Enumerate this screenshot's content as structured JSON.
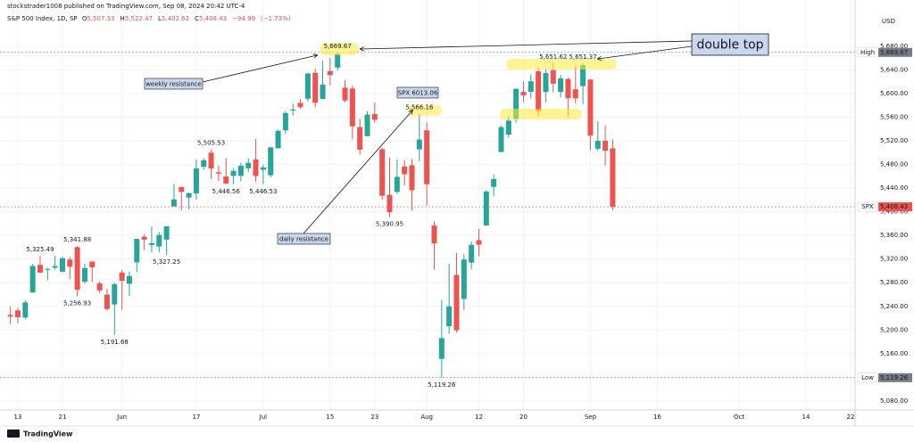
{
  "header": {
    "publisher": "stockstrader1008 published on TradingView.com, Sep 08, 2024 20:42 UTC-4",
    "logo": "TradingView"
  },
  "chart_data": {
    "type": "candlestick",
    "title": "S&P 500 Index, 1D, SP",
    "header_values": [
      {
        "prefix": "O",
        "value": 5507.33,
        "label": "5,507.33"
      },
      {
        "prefix": "H",
        "value": 5522.47,
        "label": "5,522.47"
      },
      {
        "prefix": "L",
        "value": 5402.62,
        "label": "5,402.62"
      },
      {
        "prefix": "C",
        "value": 5408.43,
        "label": "5,408.43"
      },
      {
        "value": -94.99,
        "label": "−94.99"
      },
      {
        "value": -1.73,
        "label": "(−1.73%)"
      }
    ],
    "y_axis_label": "USD",
    "up_color": "#26a69a",
    "down_color": "#ef5350",
    "grid": true,
    "open": [
      5225.49,
      5233.08,
      5221.1,
      5263.26,
      5310.07,
      5303.1,
      5305.35,
      5298.69,
      5319.28,
      5340.26,
      5281.45,
      5315.91,
      5278.73,
      5259.77,
      5243.21,
      5297.15,
      5278.24,
      5314.48,
      5357.8,
      5343.81,
      5341.22,
      5353.0,
      5409.13,
      5441.93,
      5424.08,
      5431.11,
      5476.15,
      5499.99,
      5466.77,
      5459.58,
      5460.73,
      5460.71,
      5473.59,
      5488.48,
      5471.08,
      5461.84,
      5507.44,
      5537.91,
      5572.75,
      5584.24,
      5591.26,
      5635.21,
      5590.76,
      5638.16,
      5644.09,
      5610.07,
      5608.56,
      5543.37,
      5528.04,
      5565.3,
      5505.84,
      5428.7,
      5433.67,
      5476.55,
      5478.73,
      5505.59,
      5537.84,
      5376.63,
      5151.14,
      5206.42,
      5293.13,
      5252.57,
      5314.05,
      5351.88,
      5376.98,
      5442.24,
      5501.13,
      5530.5,
      5557.23,
      5602.88,
      5603.09,
      5637.77,
      5602.89,
      5639.66,
      5602.89,
      5624.51,
      5607.3,
      5612.74,
      5623.89,
      5506.68,
      5520.08,
      5507.33
    ],
    "high": [
      5239.66,
      5237.26,
      5250.37,
      5311.76,
      5325.49,
      5305.45,
      5325.32,
      5324.32,
      5323.18,
      5341.88,
      5311.65,
      5315.91,
      5282.27,
      5270.26,
      5280.33,
      5302.11,
      5298.8,
      5354.16,
      5362.35,
      5375.08,
      5365.79,
      5375.95,
      5447.25,
      5441.93,
      5432.39,
      5488.5,
      5490.38,
      5505.53,
      5478.31,
      5490.81,
      5472.88,
      5483.14,
      5490.66,
      5523.64,
      5479.55,
      5509.69,
      5539.27,
      5570.33,
      5583.11,
      5590.75,
      5635.39,
      5642.45,
      5655.56,
      5660.54,
      5669.67,
      5622.49,
      5614.05,
      5557.5,
      5570.36,
      5585.34,
      5508.04,
      5491.59,
      5488.66,
      5487.74,
      5489.46,
      5566.16,
      5551.51,
      5383.89,
      5250.89,
      5312.34,
      5330.64,
      5328.03,
      5350.05,
      5371.2,
      5436.5,
      5463.22,
      5546.23,
      5561.98,
      5608.3,
      5620.51,
      5632.68,
      5643.22,
      5641.82,
      5651.62,
      5631.18,
      5627.03,
      5646.95,
      5651.37,
      5623.89,
      5552.99,
      5546.3,
      5522.47
    ],
    "low": [
      5209.68,
      5211.16,
      5217.98,
      5263.26,
      5296.19,
      5283.59,
      5302.4,
      5297.87,
      5286.01,
      5256.93,
      5278.39,
      5280.89,
      5262.7,
      5233.0,
      5191.68,
      5234.32,
      5257.63,
      5297.64,
      5335.36,
      5331.33,
      5331.52,
      5327.25,
      5409.13,
      5402.51,
      5403.75,
      5420.4,
      5471.32,
      5455.56,
      5452.03,
      5446.56,
      5446.72,
      5451.87,
      5467.54,
      5451.12,
      5446.53,
      5458.43,
      5507.42,
      5531.63,
      5562.51,
      5574.57,
      5586.44,
      5576.53,
      5590.44,
      5614.05,
      5639.02,
      5584.81,
      5522.81,
      5497.04,
      5528.04,
      5550.9,
      5419.98,
      5390.95,
      5430.7,
      5444.44,
      5401.71,
      5485.7,
      5410.42,
      5302.03,
      5119.26,
      5193.56,
      5195.54,
      5233.85,
      5302.4,
      5324.37,
      5376.98,
      5425.82,
      5501.13,
      5525.21,
      5550.74,
      5585.5,
      5591.57,
      5560.95,
      5585.16,
      5602.34,
      5593.48,
      5560.2,
      5583.71,
      5581.79,
      5504.33,
      5503.66,
      5478.0,
      5402.62
    ],
    "close": [
      5222.68,
      5221.42,
      5246.68,
      5308.15,
      5297.1,
      5303.27,
      5308.13,
      5321.41,
      5307.01,
      5267.84,
      5304.72,
      5306.04,
      5266.95,
      5235.48,
      5277.51,
      5283.4,
      5291.34,
      5354.03,
      5352.96,
      5346.99,
      5360.79,
      5375.32,
      5421.03,
      5433.74,
      5431.6,
      5473.23,
      5487.03,
      5473.17,
      5464.62,
      5447.87,
      5469.3,
      5477.9,
      5482.87,
      5460.48,
      5475.09,
      5509.01,
      5537.02,
      5567.19,
      5572.85,
      5576.98,
      5633.91,
      5584.54,
      5615.35,
      5631.22,
      5667.2,
      5588.27,
      5544.59,
      5505.0,
      5564.41,
      5555.74,
      5427.13,
      5399.22,
      5459.1,
      5463.54,
      5436.44,
      5522.3,
      5446.68,
      5346.56,
      5186.33,
      5240.03,
      5199.5,
      5319.31,
      5344.16,
      5344.39,
      5434.43,
      5455.21,
      5543.22,
      5554.25,
      5608.25,
      5597.12,
      5620.85,
      5570.64,
      5634.61,
      5616.84,
      5625.8,
      5592.18,
      5591.96,
      5648.4,
      5528.93,
      5520.07,
      5503.41,
      5408.43
    ],
    "high_labels": [
      null,
      null,
      null,
      null,
      "5,325.49",
      null,
      null,
      null,
      null,
      "5,341.88",
      null,
      null,
      null,
      null,
      null,
      null,
      null,
      null,
      null,
      null,
      null,
      null,
      null,
      null,
      null,
      null,
      null,
      "5,505.53",
      null,
      null,
      null,
      null,
      null,
      null,
      null,
      null,
      null,
      null,
      null,
      null,
      null,
      null,
      null,
      null,
      "5,669.67",
      null,
      null,
      null,
      null,
      null,
      null,
      null,
      null,
      null,
      null,
      "5,566.16",
      null,
      null,
      null,
      null,
      null,
      null,
      null,
      null,
      null,
      null,
      null,
      null,
      null,
      null,
      null,
      null,
      null,
      "5,651.62",
      null,
      null,
      null,
      "5,651.37",
      null,
      null,
      null,
      null
    ],
    "low_labels": [
      null,
      null,
      null,
      null,
      null,
      null,
      null,
      null,
      null,
      "5,256.93",
      null,
      null,
      null,
      null,
      "5,191.68",
      null,
      null,
      null,
      null,
      null,
      null,
      "5,327.25",
      null,
      null,
      null,
      null,
      null,
      null,
      null,
      "5,446.56",
      null,
      null,
      null,
      null,
      "5,446.53",
      null,
      null,
      null,
      null,
      null,
      null,
      null,
      null,
      null,
      null,
      null,
      null,
      null,
      null,
      null,
      null,
      "5,390.95",
      null,
      null,
      null,
      null,
      null,
      null,
      "5,119.26",
      null,
      null,
      null,
      null,
      null,
      null,
      null,
      null,
      null,
      null,
      null,
      null,
      null,
      null,
      null,
      null,
      null,
      null,
      null,
      null,
      null,
      null,
      null
    ],
    "xlim": [
      -1.4,
      113.6
    ],
    "xticks": [
      {
        "value": 1,
        "label": "13"
      },
      {
        "value": 7,
        "label": "21"
      },
      {
        "value": 15,
        "label": "Jun"
      },
      {
        "value": 25,
        "label": "17"
      },
      {
        "value": 34,
        "label": "Jul"
      },
      {
        "value": 43,
        "label": "15"
      },
      {
        "value": 49,
        "label": "23"
      },
      {
        "value": 56,
        "label": "Aug"
      },
      {
        "value": 63,
        "label": "12"
      },
      {
        "value": 69,
        "label": "20"
      },
      {
        "value": 78,
        "label": "Sep"
      },
      {
        "value": 87,
        "label": "16"
      },
      {
        "value": 98,
        "label": "Oct"
      },
      {
        "value": 107,
        "label": "14"
      },
      {
        "value": 113,
        "label": "22"
      }
    ],
    "ylim": [
      5064.7,
      5740.3
    ],
    "yticks": [
      {
        "value": 5080,
        "label": "5,080.00"
      },
      {
        "value": 5120,
        "label": "5,120.00"
      },
      {
        "value": 5160,
        "label": "5,160.00"
      },
      {
        "value": 5200,
        "label": "5,200.00"
      },
      {
        "value": 5240,
        "label": "5,240.00"
      },
      {
        "value": 5280,
        "label": "5,280.00"
      },
      {
        "value": 5320,
        "label": "5,320.00"
      },
      {
        "value": 5360,
        "label": "5,360.00"
      },
      {
        "value": 5400,
        "label": "5,400.00"
      },
      {
        "value": 5440,
        "label": "5,440.00"
      },
      {
        "value": 5480,
        "label": "5,480.00"
      },
      {
        "value": 5520,
        "label": "5,520.00"
      },
      {
        "value": 5560,
        "label": "5,560.00"
      },
      {
        "value": 5600,
        "label": "5,600.00"
      },
      {
        "value": 5640,
        "label": "5,640.00"
      },
      {
        "value": 5680,
        "label": "5,680.00"
      }
    ],
    "price_tags": [
      {
        "name": "High",
        "value": 5669.67,
        "label": "5,669.67",
        "color": "#787b86"
      },
      {
        "name": "SPX",
        "value": 5408.43,
        "label": "5,408.43",
        "color": "#ef5350"
      },
      {
        "name": "Low",
        "value": 5119.26,
        "label": "5,119.26",
        "color": "#787b86"
      }
    ],
    "annotations": [
      "double top",
      "weekly resistance",
      "SPX 6013.06",
      "daily resistance"
    ]
  }
}
